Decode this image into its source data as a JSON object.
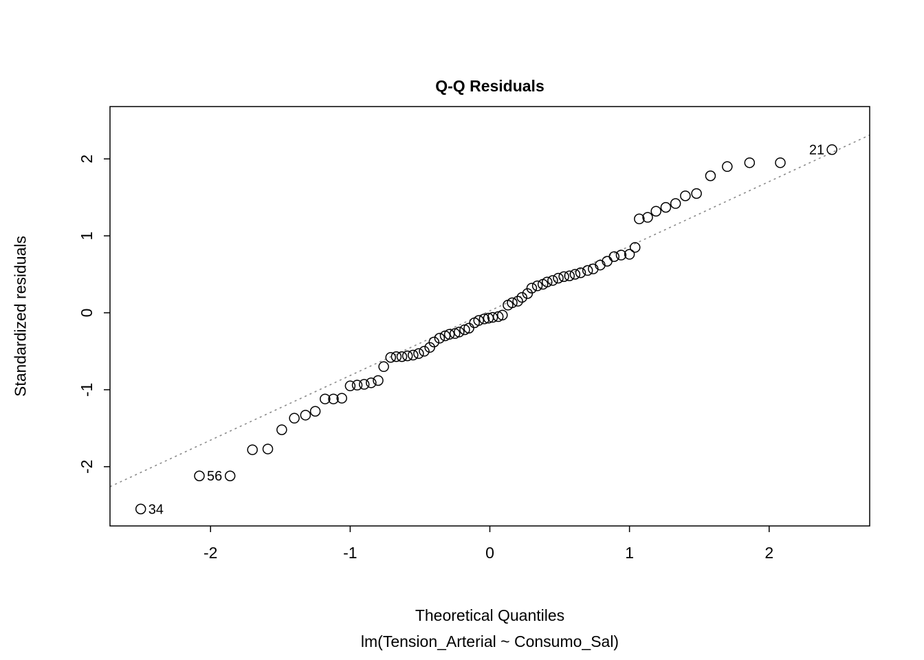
{
  "page": {
    "background": "#ffffff"
  },
  "chart_data": {
    "type": "scatter",
    "subtype": "qq-plot",
    "title": "Q-Q Residuals",
    "xlabel": "Theoretical Quantiles",
    "xlabel2": "lm(Tension_Arterial ~ Consumo_Sal)",
    "ylabel": "Standardized residuals",
    "xlim": [
      -2.72,
      2.72
    ],
    "ylim": [
      -2.77,
      2.68
    ],
    "xticks": [
      -2,
      -1,
      0,
      1,
      2
    ],
    "yticks": [
      -2,
      -1,
      0,
      1,
      2
    ],
    "grid": false,
    "legend": false,
    "point_style": {
      "shape": "open-circle",
      "radius": 7,
      "color": "#000000"
    },
    "reference_line": {
      "style": "dotted",
      "color": "#8a8a8a",
      "x1": -2.72,
      "y1": -2.26,
      "x2": 2.72,
      "y2": 2.31
    },
    "points": [
      [
        -2.5,
        -2.55
      ],
      [
        -2.08,
        -2.12
      ],
      [
        -1.86,
        -2.12
      ],
      [
        -1.7,
        -1.78
      ],
      [
        -1.59,
        -1.77
      ],
      [
        -1.49,
        -1.52
      ],
      [
        -1.4,
        -1.37
      ],
      [
        -1.32,
        -1.33
      ],
      [
        -1.25,
        -1.28
      ],
      [
        -1.18,
        -1.12
      ],
      [
        -1.12,
        -1.12
      ],
      [
        -1.06,
        -1.11
      ],
      [
        -1.0,
        -0.95
      ],
      [
        -0.95,
        -0.94
      ],
      [
        -0.9,
        -0.93
      ],
      [
        -0.85,
        -0.91
      ],
      [
        -0.8,
        -0.88
      ],
      [
        -0.76,
        -0.7
      ],
      [
        -0.71,
        -0.58
      ],
      [
        -0.67,
        -0.57
      ],
      [
        -0.63,
        -0.57
      ],
      [
        -0.59,
        -0.56
      ],
      [
        -0.55,
        -0.55
      ],
      [
        -0.51,
        -0.53
      ],
      [
        -0.47,
        -0.5
      ],
      [
        -0.43,
        -0.45
      ],
      [
        -0.4,
        -0.38
      ],
      [
        -0.36,
        -0.33
      ],
      [
        -0.32,
        -0.3
      ],
      [
        -0.29,
        -0.28
      ],
      [
        -0.25,
        -0.27
      ],
      [
        -0.22,
        -0.25
      ],
      [
        -0.18,
        -0.22
      ],
      [
        -0.15,
        -0.2
      ],
      [
        -0.11,
        -0.13
      ],
      [
        -0.08,
        -0.1
      ],
      [
        -0.04,
        -0.08
      ],
      [
        -0.01,
        -0.07
      ],
      [
        0.02,
        -0.06
      ],
      [
        0.06,
        -0.05
      ],
      [
        0.09,
        -0.03
      ],
      [
        0.13,
        0.1
      ],
      [
        0.16,
        0.13
      ],
      [
        0.2,
        0.15
      ],
      [
        0.23,
        0.2
      ],
      [
        0.27,
        0.25
      ],
      [
        0.3,
        0.32
      ],
      [
        0.34,
        0.35
      ],
      [
        0.38,
        0.37
      ],
      [
        0.41,
        0.4
      ],
      [
        0.45,
        0.42
      ],
      [
        0.49,
        0.45
      ],
      [
        0.53,
        0.47
      ],
      [
        0.57,
        0.48
      ],
      [
        0.61,
        0.5
      ],
      [
        0.65,
        0.52
      ],
      [
        0.7,
        0.55
      ],
      [
        0.74,
        0.57
      ],
      [
        0.79,
        0.62
      ],
      [
        0.84,
        0.67
      ],
      [
        0.89,
        0.73
      ],
      [
        0.94,
        0.75
      ],
      [
        1.0,
        0.76
      ],
      [
        1.04,
        0.85
      ],
      [
        1.07,
        1.22
      ],
      [
        1.13,
        1.24
      ],
      [
        1.19,
        1.32
      ],
      [
        1.26,
        1.37
      ],
      [
        1.33,
        1.42
      ],
      [
        1.4,
        1.52
      ],
      [
        1.48,
        1.55
      ],
      [
        1.58,
        1.78
      ],
      [
        1.7,
        1.9
      ],
      [
        1.86,
        1.95
      ],
      [
        2.08,
        1.95
      ],
      [
        2.45,
        2.12
      ]
    ],
    "annotations": [
      {
        "label": "34",
        "x": -2.5,
        "y": -2.55,
        "side": "right"
      },
      {
        "label": "56",
        "x": -2.08,
        "y": -2.12,
        "side": "right"
      },
      {
        "label": "21",
        "x": 2.45,
        "y": 2.12,
        "side": "left"
      }
    ]
  }
}
